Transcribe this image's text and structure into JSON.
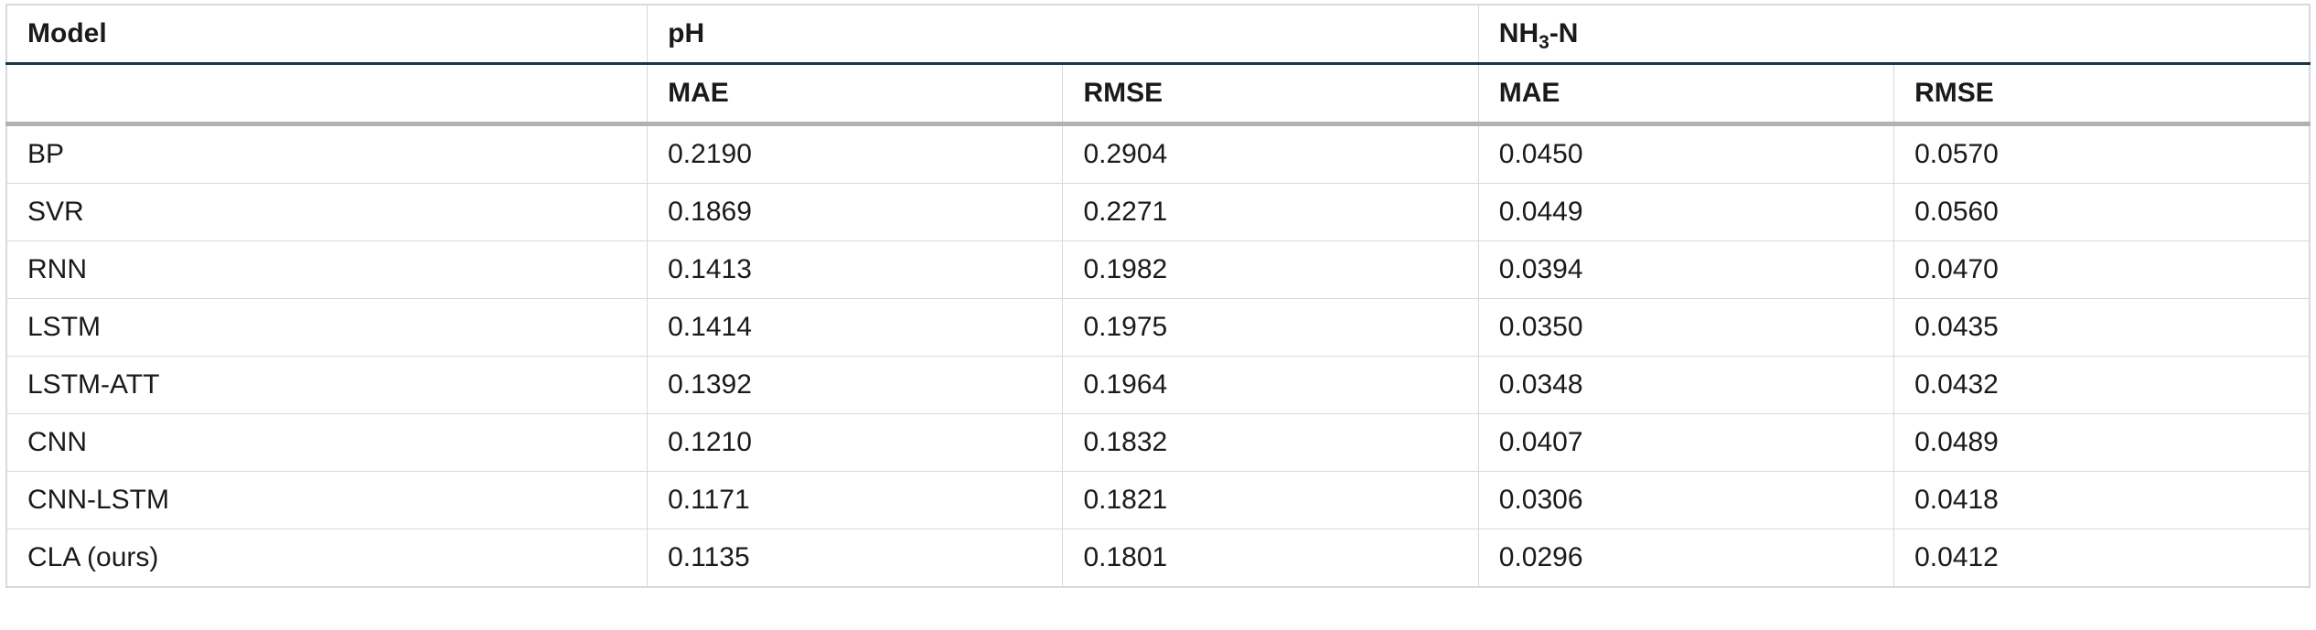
{
  "table": {
    "background_color": "#ffffff",
    "outer_border_color": "#d7d9dc",
    "dark_rule_color": "#1c3542",
    "thick_grey_rule_color": "#b0b2b4",
    "font_family": "Segoe UI, Helvetica Neue, Arial, sans-serif",
    "header_fontsize_pt": 22,
    "body_fontsize_pt": 22,
    "col_widths_pct": [
      16.5,
      10.7,
      10.7,
      10.7,
      10.7
    ],
    "header_row1": {
      "c0": "Model",
      "c1_html": "pH",
      "c2_html": "NH<sub>3</sub>-N"
    },
    "header_row2": {
      "c1": "MAE",
      "c2": "RMSE",
      "c3": "MAE",
      "c4": "RMSE"
    },
    "rows": [
      {
        "model": "BP",
        "ph_mae": "0.2190",
        "ph_rmse": "0.2904",
        "n_mae": "0.0450",
        "n_rmse": "0.0570"
      },
      {
        "model": "SVR",
        "ph_mae": "0.1869",
        "ph_rmse": "0.2271",
        "n_mae": "0.0449",
        "n_rmse": "0.0560"
      },
      {
        "model": "RNN",
        "ph_mae": "0.1413",
        "ph_rmse": "0.1982",
        "n_mae": "0.0394",
        "n_rmse": "0.0470"
      },
      {
        "model": "LSTM",
        "ph_mae": "0.1414",
        "ph_rmse": "0.1975",
        "n_mae": "0.0350",
        "n_rmse": "0.0435"
      },
      {
        "model": "LSTM-ATT",
        "ph_mae": "0.1392",
        "ph_rmse": "0.1964",
        "n_mae": "0.0348",
        "n_rmse": "0.0432"
      },
      {
        "model": "CNN",
        "ph_mae": "0.1210",
        "ph_rmse": "0.1832",
        "n_mae": "0.0407",
        "n_rmse": "0.0489"
      },
      {
        "model": "CNN-LSTM",
        "ph_mae": "0.1171",
        "ph_rmse": "0.1821",
        "n_mae": "0.0306",
        "n_rmse": "0.0418"
      },
      {
        "model": "CLA (ours)",
        "ph_mae": "0.1135",
        "ph_rmse": "0.1801",
        "n_mae": "0.0296",
        "n_rmse": "0.0412"
      }
    ]
  }
}
